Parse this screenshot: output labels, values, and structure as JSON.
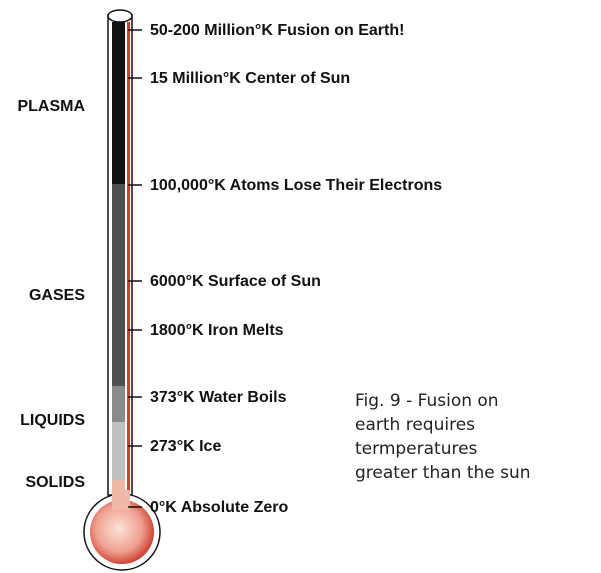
{
  "phases": [
    "PLASMA",
    "GASES",
    "LIQUIDS",
    "SOLIDS"
  ],
  "markers": [
    "50-200 Million°K Fusion on Earth!",
    "15 Million°K Center of Sun",
    "100,000°K Atoms Lose Their Electrons",
    "6000°K Surface of Sun",
    "1800°K Iron Melts",
    "373°K Water Boils",
    "273°K Ice",
    "0°K Absolute Zero"
  ],
  "caption": [
    "Fig. 9 - Fusion on",
    "earth requires",
    "termperatures",
    "greater than the sun"
  ]
}
